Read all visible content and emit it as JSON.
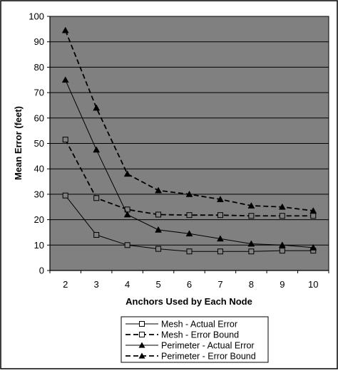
{
  "chart_data": {
    "type": "line",
    "title": "",
    "xlabel": "Anchors Used by Each Node",
    "ylabel": "Mean Error (feet)",
    "x": [
      2,
      3,
      4,
      5,
      6,
      7,
      8,
      9,
      10
    ],
    "ylim": [
      0,
      100
    ],
    "yticks": [
      0,
      10,
      20,
      30,
      40,
      50,
      60,
      70,
      80,
      90,
      100
    ],
    "grid": "horizontal major gridlines",
    "legend_position": "bottom-right, below plot",
    "plot_background": "#808080",
    "series": [
      {
        "name": "Mesh - Actual Error",
        "values": [
          29.5,
          14.0,
          10.0,
          8.5,
          7.5,
          7.5,
          7.5,
          7.8,
          7.8
        ],
        "line": "solid",
        "marker": "open-square",
        "color": "#000000"
      },
      {
        "name": "Mesh - Error Bound",
        "values": [
          51.5,
          28.5,
          24.0,
          22.0,
          21.8,
          21.8,
          21.5,
          21.5,
          21.5
        ],
        "line": "dashed",
        "marker": "open-square",
        "color": "#000000"
      },
      {
        "name": "Perimeter - Actual Error",
        "values": [
          75.0,
          47.5,
          22.0,
          16.0,
          14.5,
          12.5,
          10.5,
          10.0,
          9.0
        ],
        "line": "solid",
        "marker": "filled-triangle",
        "color": "#000000"
      },
      {
        "name": "Perimeter - Error Bound",
        "values": [
          94.5,
          64.0,
          38.0,
          31.5,
          30.0,
          28.0,
          25.5,
          25.0,
          23.5
        ],
        "line": "dashed",
        "marker": "filled-triangle",
        "color": "#000000"
      }
    ]
  }
}
